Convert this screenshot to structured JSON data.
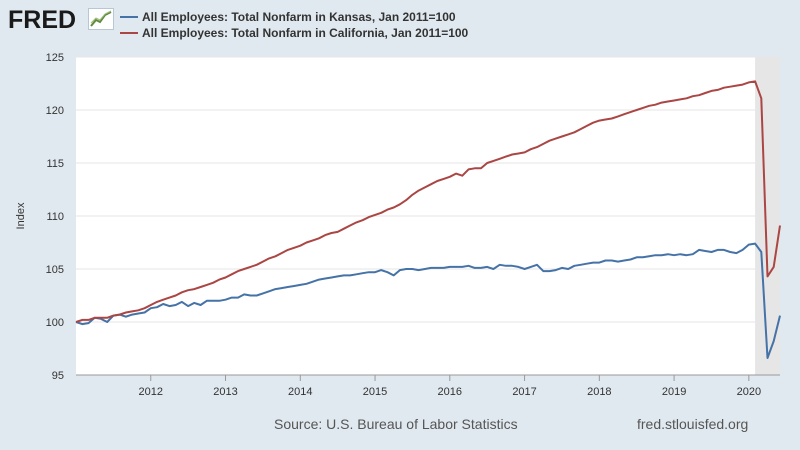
{
  "branding": {
    "logo_text": "FRED",
    "logo_icon": "line-chart-icon"
  },
  "legend": [
    {
      "label": "All Employees: Total Nonfarm in Kansas, Jan 2011=100",
      "color": "#4572a7"
    },
    {
      "label": "All Employees: Total Nonfarm in California, Jan 2011=100",
      "color": "#aa4643"
    }
  ],
  "footer": {
    "source": "Source: U.S. Bureau of Labor Statistics",
    "site": "fred.stlouisfed.org"
  },
  "colors": {
    "background": "#e1e9f0",
    "plot_background": "#ffffff",
    "recession_shading": "#e6e6e6",
    "grid": "#e6e6e6"
  },
  "chart_data": {
    "type": "line",
    "title": "",
    "xlabel": "",
    "ylabel": "Index",
    "ylim": [
      95,
      125
    ],
    "yticks": [
      95,
      100,
      105,
      110,
      115,
      120,
      125
    ],
    "xlim": [
      2011.0,
      2020.4167
    ],
    "xticks": [
      2012,
      2013,
      2014,
      2015,
      2016,
      2017,
      2018,
      2019,
      2020
    ],
    "xtick_labels": [
      "2012",
      "2013",
      "2014",
      "2015",
      "2016",
      "2017",
      "2018",
      "2019",
      "2020"
    ],
    "recession_shading": [
      [
        2020.0833,
        2020.4167
      ]
    ],
    "grid": "horizontal",
    "series": [
      {
        "name": "All Employees: Total Nonfarm in Kansas, Jan 2011=100",
        "color": "#4572a7",
        "points": [
          [
            2011.0,
            100.0
          ],
          [
            2011.083,
            99.8
          ],
          [
            2011.167,
            99.9
          ],
          [
            2011.25,
            100.4
          ],
          [
            2011.333,
            100.3
          ],
          [
            2011.417,
            100.0
          ],
          [
            2011.5,
            100.6
          ],
          [
            2011.583,
            100.7
          ],
          [
            2011.667,
            100.5
          ],
          [
            2011.75,
            100.7
          ],
          [
            2011.833,
            100.8
          ],
          [
            2011.917,
            100.9
          ],
          [
            2012.0,
            101.3
          ],
          [
            2012.083,
            101.4
          ],
          [
            2012.167,
            101.7
          ],
          [
            2012.25,
            101.5
          ],
          [
            2012.333,
            101.6
          ],
          [
            2012.417,
            101.9
          ],
          [
            2012.5,
            101.5
          ],
          [
            2012.583,
            101.8
          ],
          [
            2012.667,
            101.6
          ],
          [
            2012.75,
            102.0
          ],
          [
            2012.833,
            102.0
          ],
          [
            2012.917,
            102.0
          ],
          [
            2013.0,
            102.1
          ],
          [
            2013.083,
            102.3
          ],
          [
            2013.167,
            102.3
          ],
          [
            2013.25,
            102.6
          ],
          [
            2013.333,
            102.5
          ],
          [
            2013.417,
            102.5
          ],
          [
            2013.5,
            102.7
          ],
          [
            2013.583,
            102.9
          ],
          [
            2013.667,
            103.1
          ],
          [
            2013.75,
            103.2
          ],
          [
            2013.833,
            103.3
          ],
          [
            2013.917,
            103.4
          ],
          [
            2014.0,
            103.5
          ],
          [
            2014.083,
            103.6
          ],
          [
            2014.167,
            103.8
          ],
          [
            2014.25,
            104.0
          ],
          [
            2014.333,
            104.1
          ],
          [
            2014.417,
            104.2
          ],
          [
            2014.5,
            104.3
          ],
          [
            2014.583,
            104.4
          ],
          [
            2014.667,
            104.4
          ],
          [
            2014.75,
            104.5
          ],
          [
            2014.833,
            104.6
          ],
          [
            2014.917,
            104.7
          ],
          [
            2015.0,
            104.7
          ],
          [
            2015.083,
            104.9
          ],
          [
            2015.167,
            104.7
          ],
          [
            2015.25,
            104.4
          ],
          [
            2015.333,
            104.9
          ],
          [
            2015.417,
            105.0
          ],
          [
            2015.5,
            105.0
          ],
          [
            2015.583,
            104.9
          ],
          [
            2015.667,
            105.0
          ],
          [
            2015.75,
            105.1
          ],
          [
            2015.833,
            105.1
          ],
          [
            2015.917,
            105.1
          ],
          [
            2016.0,
            105.2
          ],
          [
            2016.083,
            105.2
          ],
          [
            2016.167,
            105.2
          ],
          [
            2016.25,
            105.3
          ],
          [
            2016.333,
            105.1
          ],
          [
            2016.417,
            105.1
          ],
          [
            2016.5,
            105.2
          ],
          [
            2016.583,
            105.0
          ],
          [
            2016.667,
            105.4
          ],
          [
            2016.75,
            105.3
          ],
          [
            2016.833,
            105.3
          ],
          [
            2016.917,
            105.2
          ],
          [
            2017.0,
            105.0
          ],
          [
            2017.083,
            105.2
          ],
          [
            2017.167,
            105.4
          ],
          [
            2017.25,
            104.8
          ],
          [
            2017.333,
            104.8
          ],
          [
            2017.417,
            104.9
          ],
          [
            2017.5,
            105.1
          ],
          [
            2017.583,
            105.0
          ],
          [
            2017.667,
            105.3
          ],
          [
            2017.75,
            105.4
          ],
          [
            2017.833,
            105.5
          ],
          [
            2017.917,
            105.6
          ],
          [
            2018.0,
            105.6
          ],
          [
            2018.083,
            105.8
          ],
          [
            2018.167,
            105.8
          ],
          [
            2018.25,
            105.7
          ],
          [
            2018.333,
            105.8
          ],
          [
            2018.417,
            105.9
          ],
          [
            2018.5,
            106.1
          ],
          [
            2018.583,
            106.1
          ],
          [
            2018.667,
            106.2
          ],
          [
            2018.75,
            106.3
          ],
          [
            2018.833,
            106.3
          ],
          [
            2018.917,
            106.4
          ],
          [
            2019.0,
            106.3
          ],
          [
            2019.083,
            106.4
          ],
          [
            2019.167,
            106.3
          ],
          [
            2019.25,
            106.4
          ],
          [
            2019.333,
            106.8
          ],
          [
            2019.417,
            106.7
          ],
          [
            2019.5,
            106.6
          ],
          [
            2019.583,
            106.8
          ],
          [
            2019.667,
            106.8
          ],
          [
            2019.75,
            106.6
          ],
          [
            2019.833,
            106.5
          ],
          [
            2019.917,
            106.8
          ],
          [
            2020.0,
            107.3
          ],
          [
            2020.083,
            107.4
          ],
          [
            2020.167,
            106.6
          ],
          [
            2020.25,
            96.6
          ],
          [
            2020.333,
            98.2
          ],
          [
            2020.417,
            100.6
          ]
        ]
      },
      {
        "name": "All Employees: Total Nonfarm in California, Jan 2011=100",
        "color": "#aa4643",
        "points": [
          [
            2011.0,
            100.0
          ],
          [
            2011.083,
            100.2
          ],
          [
            2011.167,
            100.2
          ],
          [
            2011.25,
            100.4
          ],
          [
            2011.333,
            100.4
          ],
          [
            2011.417,
            100.4
          ],
          [
            2011.5,
            100.6
          ],
          [
            2011.583,
            100.7
          ],
          [
            2011.667,
            100.9
          ],
          [
            2011.75,
            101.0
          ],
          [
            2011.833,
            101.1
          ],
          [
            2011.917,
            101.3
          ],
          [
            2012.0,
            101.6
          ],
          [
            2012.083,
            101.9
          ],
          [
            2012.167,
            102.1
          ],
          [
            2012.25,
            102.3
          ],
          [
            2012.333,
            102.5
          ],
          [
            2012.417,
            102.8
          ],
          [
            2012.5,
            103.0
          ],
          [
            2012.583,
            103.1
          ],
          [
            2012.667,
            103.3
          ],
          [
            2012.75,
            103.5
          ],
          [
            2012.833,
            103.7
          ],
          [
            2012.917,
            104.0
          ],
          [
            2013.0,
            104.2
          ],
          [
            2013.083,
            104.5
          ],
          [
            2013.167,
            104.8
          ],
          [
            2013.25,
            105.0
          ],
          [
            2013.333,
            105.2
          ],
          [
            2013.417,
            105.4
          ],
          [
            2013.5,
            105.7
          ],
          [
            2013.583,
            106.0
          ],
          [
            2013.667,
            106.2
          ],
          [
            2013.75,
            106.5
          ],
          [
            2013.833,
            106.8
          ],
          [
            2013.917,
            107.0
          ],
          [
            2014.0,
            107.2
          ],
          [
            2014.083,
            107.5
          ],
          [
            2014.167,
            107.7
          ],
          [
            2014.25,
            107.9
          ],
          [
            2014.333,
            108.2
          ],
          [
            2014.417,
            108.4
          ],
          [
            2014.5,
            108.5
          ],
          [
            2014.583,
            108.8
          ],
          [
            2014.667,
            109.1
          ],
          [
            2014.75,
            109.4
          ],
          [
            2014.833,
            109.6
          ],
          [
            2014.917,
            109.9
          ],
          [
            2015.0,
            110.1
          ],
          [
            2015.083,
            110.3
          ],
          [
            2015.167,
            110.6
          ],
          [
            2015.25,
            110.8
          ],
          [
            2015.333,
            111.1
          ],
          [
            2015.417,
            111.5
          ],
          [
            2015.5,
            112.0
          ],
          [
            2015.583,
            112.4
          ],
          [
            2015.667,
            112.7
          ],
          [
            2015.75,
            113.0
          ],
          [
            2015.833,
            113.3
          ],
          [
            2015.917,
            113.5
          ],
          [
            2016.0,
            113.7
          ],
          [
            2016.083,
            114.0
          ],
          [
            2016.167,
            113.8
          ],
          [
            2016.25,
            114.4
          ],
          [
            2016.333,
            114.5
          ],
          [
            2016.417,
            114.5
          ],
          [
            2016.5,
            115.0
          ],
          [
            2016.583,
            115.2
          ],
          [
            2016.667,
            115.4
          ],
          [
            2016.75,
            115.6
          ],
          [
            2016.833,
            115.8
          ],
          [
            2016.917,
            115.9
          ],
          [
            2017.0,
            116.0
          ],
          [
            2017.083,
            116.3
          ],
          [
            2017.167,
            116.5
          ],
          [
            2017.25,
            116.8
          ],
          [
            2017.333,
            117.1
          ],
          [
            2017.417,
            117.3
          ],
          [
            2017.5,
            117.5
          ],
          [
            2017.583,
            117.7
          ],
          [
            2017.667,
            117.9
          ],
          [
            2017.75,
            118.2
          ],
          [
            2017.833,
            118.5
          ],
          [
            2017.917,
            118.8
          ],
          [
            2018.0,
            119.0
          ],
          [
            2018.083,
            119.1
          ],
          [
            2018.167,
            119.2
          ],
          [
            2018.25,
            119.4
          ],
          [
            2018.333,
            119.6
          ],
          [
            2018.417,
            119.8
          ],
          [
            2018.5,
            120.0
          ],
          [
            2018.583,
            120.2
          ],
          [
            2018.667,
            120.4
          ],
          [
            2018.75,
            120.5
          ],
          [
            2018.833,
            120.7
          ],
          [
            2018.917,
            120.8
          ],
          [
            2019.0,
            120.9
          ],
          [
            2019.083,
            121.0
          ],
          [
            2019.167,
            121.1
          ],
          [
            2019.25,
            121.3
          ],
          [
            2019.333,
            121.4
          ],
          [
            2019.417,
            121.6
          ],
          [
            2019.5,
            121.8
          ],
          [
            2019.583,
            121.9
          ],
          [
            2019.667,
            122.1
          ],
          [
            2019.75,
            122.2
          ],
          [
            2019.833,
            122.3
          ],
          [
            2019.917,
            122.4
          ],
          [
            2020.0,
            122.6
          ],
          [
            2020.083,
            122.7
          ],
          [
            2020.167,
            121.1
          ],
          [
            2020.25,
            104.3
          ],
          [
            2020.333,
            105.2
          ],
          [
            2020.417,
            109.1
          ]
        ]
      }
    ]
  }
}
